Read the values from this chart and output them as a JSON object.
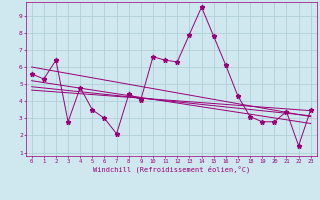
{
  "xlabel": "Windchill (Refroidissement éolien,°C)",
  "bg_color": "#cfe8ef",
  "grid_color": "#b0d0d8",
  "line_color": "#990077",
  "xlim": [
    -0.5,
    23.5
  ],
  "ylim": [
    0.8,
    9.8
  ],
  "xticks": [
    0,
    1,
    2,
    3,
    4,
    5,
    6,
    7,
    8,
    9,
    10,
    11,
    12,
    13,
    14,
    15,
    16,
    17,
    18,
    19,
    20,
    21,
    22,
    23
  ],
  "yticks": [
    1,
    2,
    3,
    4,
    5,
    6,
    7,
    8,
    9
  ],
  "data_x": [
    0,
    1,
    2,
    3,
    4,
    5,
    6,
    7,
    8,
    9,
    10,
    11,
    12,
    13,
    14,
    15,
    16,
    17,
    18,
    19,
    20,
    21,
    22,
    23
  ],
  "data_y": [
    5.6,
    5.3,
    6.4,
    2.8,
    4.8,
    3.5,
    3.0,
    2.1,
    4.4,
    4.1,
    6.6,
    6.4,
    6.3,
    7.9,
    9.5,
    7.8,
    6.1,
    4.3,
    3.1,
    2.8,
    2.8,
    3.4,
    1.4,
    3.5
  ],
  "trend1_x": [
    0,
    23
  ],
  "trend1_y": [
    6.0,
    3.1
  ],
  "trend2_x": [
    0,
    23
  ],
  "trend2_y": [
    5.2,
    2.7
  ],
  "trend3_x": [
    0,
    23
  ],
  "trend3_y": [
    4.85,
    3.15
  ],
  "trend4_x": [
    0,
    23
  ],
  "trend4_y": [
    4.65,
    3.45
  ]
}
